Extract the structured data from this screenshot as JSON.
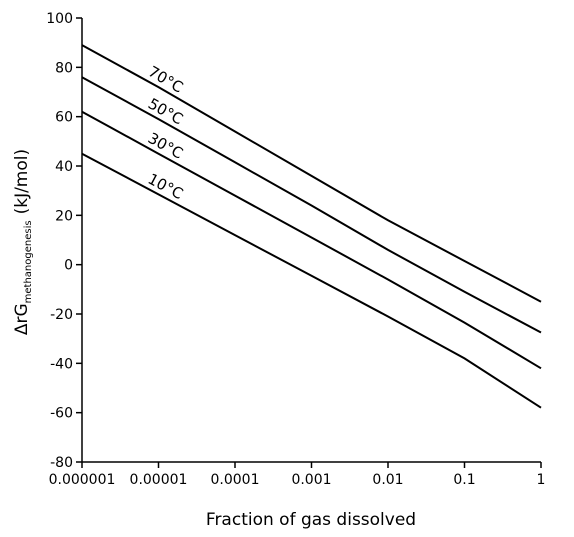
{
  "chart_data": {
    "type": "line",
    "xlabel": "Fraction of gas dissolved",
    "ylabel_main": "ΔrG",
    "ylabel_sub": "methanogenesis",
    "ylabel_unit": "(kJ/mol)",
    "x_scale": "log",
    "xlim": [
      1e-06,
      1
    ],
    "ylim": [
      -80,
      100
    ],
    "x_ticks": [
      1e-06,
      1e-05,
      0.0001,
      0.001,
      0.01,
      0.1,
      1
    ],
    "x_tick_labels": [
      "0.000001",
      "0.00001",
      "0.0001",
      "0.001",
      "0.01",
      "0.1",
      "1"
    ],
    "y_ticks": [
      -80,
      -60,
      -40,
      -20,
      0,
      20,
      40,
      60,
      80,
      100
    ],
    "y_tick_labels": [
      "-80",
      "-60",
      "-40",
      "-20",
      "0",
      "20",
      "40",
      "60",
      "80",
      "100"
    ],
    "grid": false,
    "legend": "none",
    "line_color": "#000000",
    "series": [
      {
        "name": "10°C",
        "x": [
          1e-06,
          1e-05,
          0.0001,
          0.001,
          0.01,
          0.1,
          1
        ],
        "y": [
          45,
          28.5,
          12,
          -4.5,
          -21,
          -38,
          -58
        ]
      },
      {
        "name": "30°C",
        "x": [
          1e-06,
          1e-05,
          0.0001,
          0.001,
          0.01,
          0.1,
          1
        ],
        "y": [
          62,
          45,
          28,
          11,
          -6,
          -23.5,
          -42
        ]
      },
      {
        "name": "50°C",
        "x": [
          1e-06,
          1e-05,
          0.0001,
          0.001,
          0.01,
          0.1,
          1
        ],
        "y": [
          76,
          59,
          41.5,
          24,
          6,
          -11,
          -27.5
        ]
      },
      {
        "name": "70°C",
        "x": [
          1e-06,
          1e-05,
          0.0001,
          0.001,
          0.01,
          0.1,
          1
        ],
        "y": [
          89,
          72,
          54,
          36,
          18,
          1.5,
          -15
        ]
      }
    ]
  }
}
